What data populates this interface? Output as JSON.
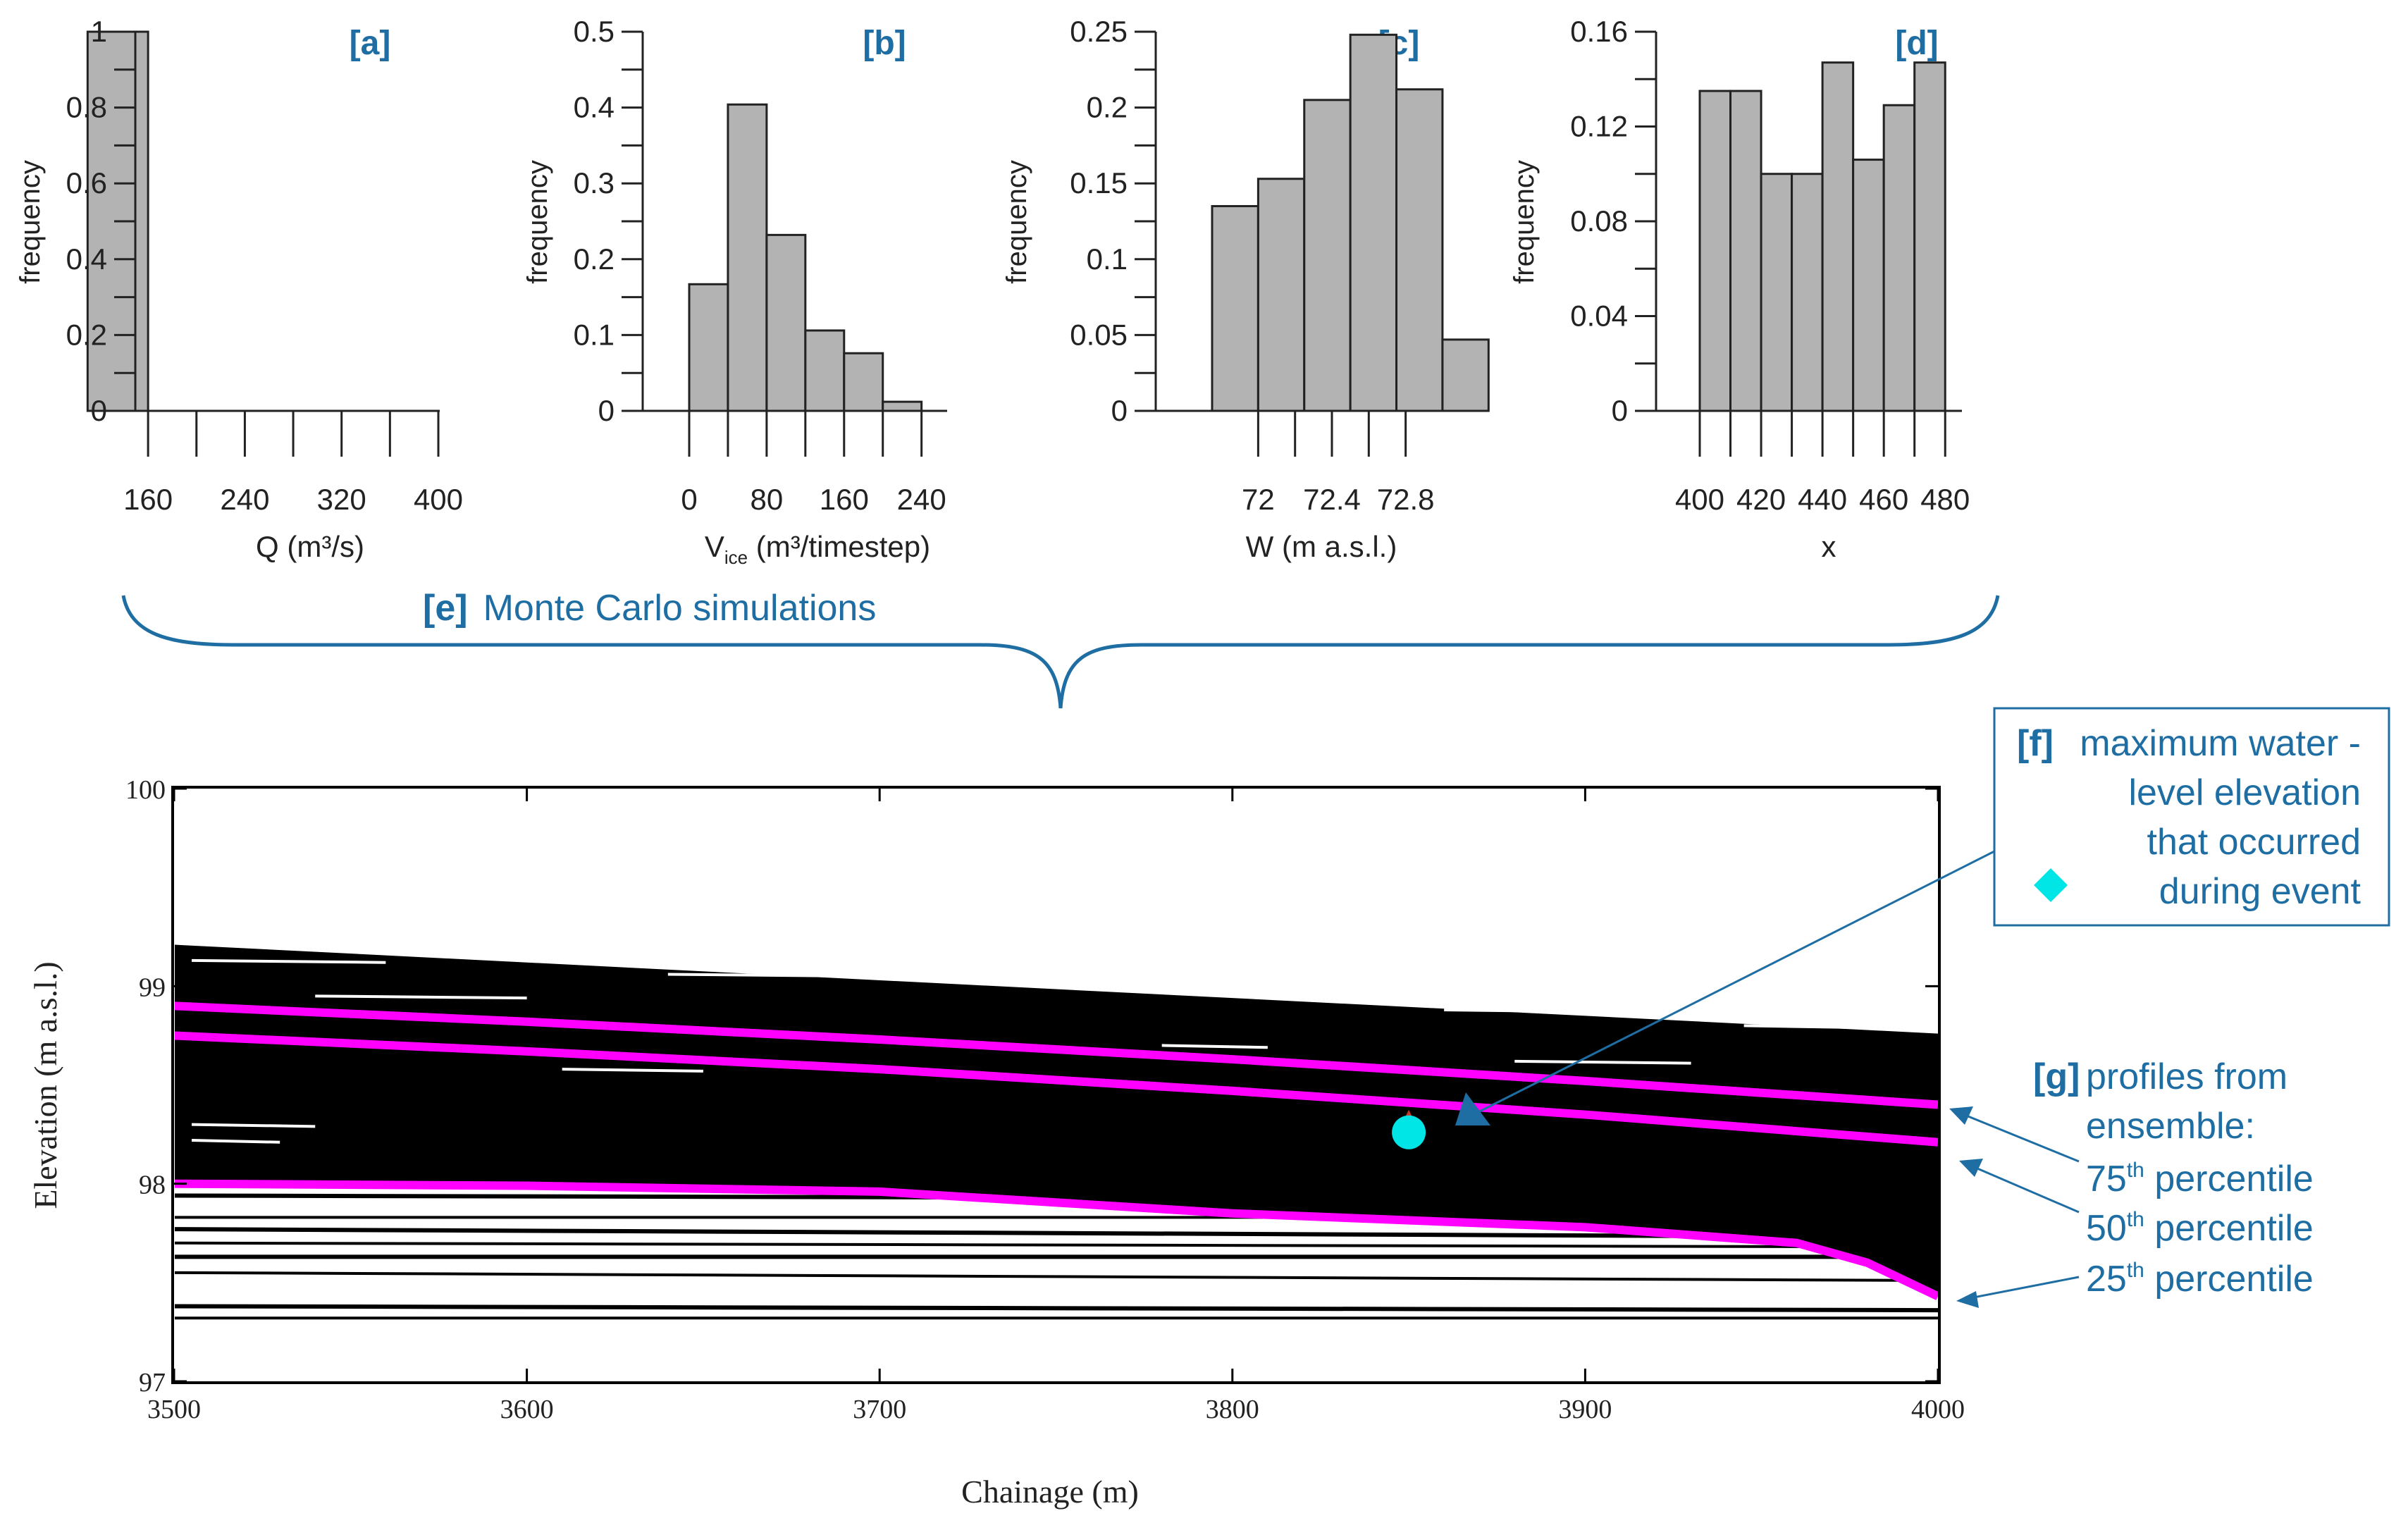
{
  "colors": {
    "bar_fill": "#b3b3b3",
    "bar_stroke": "#222222",
    "accent_blue": "#1f6ea3",
    "percentile_line": "#ff00ff",
    "observed_marker": "#00e5e5",
    "ensemble": "#000000"
  },
  "chart_data": [
    {
      "type": "bar",
      "panel_label": "a",
      "xlabel": "Q (m³/s)",
      "ylabel": "frequency",
      "xlim": [
        90,
        400
      ],
      "ylim": [
        0,
        1
      ],
      "xticks": [
        "160",
        "240",
        "320",
        "400"
      ],
      "yticks": [
        "0",
        "0.2",
        "0.4",
        "0.6",
        "0.8",
        "1"
      ],
      "bins": [
        {
          "x0": 110,
          "x1": 160,
          "value": 1
        },
        {
          "x0": 160,
          "x1": 210,
          "value": 0
        },
        {
          "x0": 210,
          "x1": 260,
          "value": 0
        },
        {
          "x0": 260,
          "x1": 310,
          "value": 0
        },
        {
          "x0": 310,
          "x1": 360,
          "value": 0
        },
        {
          "x0": 360,
          "x1": 400,
          "value": 0
        }
      ]
    },
    {
      "type": "bar",
      "panel_label": "b",
      "xlabel_main": "V",
      "xlabel_sub": "ice",
      "xlabel_rest": " (m³/timestep)",
      "ylabel": "frequency",
      "xlim": [
        0,
        265
      ],
      "ylim": [
        0,
        0.5
      ],
      "xticks": [
        "0",
        "80",
        "160",
        "240"
      ],
      "yticks": [
        "0",
        "0.1",
        "0.2",
        "0.3",
        "0.4",
        "0.5"
      ],
      "bins": [
        {
          "x0": 0,
          "x1": 40,
          "value": 0.167
        },
        {
          "x0": 40,
          "x1": 80,
          "value": 0.404
        },
        {
          "x0": 80,
          "x1": 120,
          "value": 0.232
        },
        {
          "x0": 120,
          "x1": 160,
          "value": 0.106
        },
        {
          "x0": 160,
          "x1": 200,
          "value": 0.076
        },
        {
          "x0": 200,
          "x1": 240,
          "value": 0.012
        }
      ]
    },
    {
      "type": "bar",
      "panel_label": "c",
      "xlabel": "W (m a.s.l.)",
      "ylabel": "frequency",
      "xlim": [
        71.75,
        73.05
      ],
      "ylim": [
        0,
        0.25
      ],
      "xticks": [
        "72",
        "72.4",
        "72.8"
      ],
      "yticks": [
        "0",
        "0.05",
        "0.1",
        "0.15",
        "0.2",
        "0.25"
      ],
      "bins": [
        {
          "x0": 71.75,
          "x1": 72.0,
          "value": 0.135
        },
        {
          "x0": 72.0,
          "x1": 72.25,
          "value": 0.153
        },
        {
          "x0": 72.25,
          "x1": 72.5,
          "value": 0.205
        },
        {
          "x0": 72.5,
          "x1": 72.75,
          "value": 0.248
        },
        {
          "x0": 72.75,
          "x1": 73.0,
          "value": 0.212
        },
        {
          "x0": 73.0,
          "x1": 73.25,
          "value": 0.047
        }
      ]
    },
    {
      "type": "bar",
      "panel_label": "d",
      "xlabel": "x",
      "ylabel": "frequency",
      "xlim": [
        400,
        485
      ],
      "ylim": [
        0,
        0.16
      ],
      "xticks": [
        "400",
        "420",
        "440",
        "460",
        "480"
      ],
      "yticks": [
        "0",
        "0.04",
        "0.08",
        "0.12",
        "0.16"
      ],
      "bins": [
        {
          "x0": 400,
          "x1": 410,
          "value": 0.135
        },
        {
          "x0": 410,
          "x1": 420,
          "value": 0.135
        },
        {
          "x0": 420,
          "x1": 430,
          "value": 0.1
        },
        {
          "x0": 430,
          "x1": 440,
          "value": 0.1
        },
        {
          "x0": 440,
          "x1": 450,
          "value": 0.147
        },
        {
          "x0": 450,
          "x1": 460,
          "value": 0.106
        },
        {
          "x0": 460,
          "x1": 470,
          "value": 0.129
        },
        {
          "x0": 470,
          "x1": 480,
          "value": 0.147
        }
      ]
    },
    {
      "type": "line",
      "xlabel": "Chainage (m)",
      "ylabel": "Elevation (m a.s.l.)",
      "xlim": [
        3500,
        4000
      ],
      "ylim": [
        97,
        100
      ],
      "xticks": [
        "3500",
        "3600",
        "3700",
        "3800",
        "3900",
        "4000"
      ],
      "yticks": [
        "97",
        "98",
        "99",
        "100"
      ],
      "ensemble_band": {
        "upper": [
          {
            "x": 3500,
            "y": 99.21
          },
          {
            "x": 4000,
            "y": 98.76
          }
        ],
        "lower_x": 4000,
        "lower_y": 97.5
      },
      "low_profiles_y": [
        97.32,
        97.38,
        97.55,
        97.63,
        97.7,
        97.77,
        97.83,
        97.94,
        98.03,
        98.1,
        98.2,
        98.28,
        98.34
      ],
      "series": [
        {
          "name": "75th percentile",
          "points": [
            {
              "x": 3500,
              "y": 98.9
            },
            {
              "x": 3600,
              "y": 98.82
            },
            {
              "x": 3700,
              "y": 98.73
            },
            {
              "x": 3800,
              "y": 98.63
            },
            {
              "x": 3900,
              "y": 98.52
            },
            {
              "x": 4000,
              "y": 98.4
            }
          ]
        },
        {
          "name": "50th percentile",
          "points": [
            {
              "x": 3500,
              "y": 98.75
            },
            {
              "x": 3600,
              "y": 98.67
            },
            {
              "x": 3700,
              "y": 98.58
            },
            {
              "x": 3800,
              "y": 98.47
            },
            {
              "x": 3900,
              "y": 98.35
            },
            {
              "x": 4000,
              "y": 98.21
            }
          ]
        },
        {
          "name": "25th percentile",
          "points": [
            {
              "x": 3500,
              "y": 98.0
            },
            {
              "x": 3600,
              "y": 97.99
            },
            {
              "x": 3700,
              "y": 97.96
            },
            {
              "x": 3800,
              "y": 97.85
            },
            {
              "x": 3900,
              "y": 97.78
            },
            {
              "x": 3960,
              "y": 97.7
            },
            {
              "x": 3980,
              "y": 97.6
            },
            {
              "x": 4000,
              "y": 97.43
            }
          ]
        }
      ],
      "observed_max": {
        "x": 3850,
        "y": 98.26
      }
    }
  ],
  "bracket": {
    "label_tag": "[e]",
    "label_text": "Monte Carlo simulations"
  },
  "annotation_f": {
    "tag": "[f]",
    "lines": [
      "maximum water -",
      "level elevation",
      "that occurred",
      "during event"
    ]
  },
  "annotation_g": {
    "tag": "[g]",
    "line1": "profiles from",
    "line2": "ensemble:",
    "pct": [
      {
        "num": "75",
        "sup": "th",
        "text": " percentile"
      },
      {
        "num": "50",
        "sup": "th",
        "text": " percentile"
      },
      {
        "num": "25",
        "sup": "th",
        "text": " percentile"
      }
    ]
  }
}
